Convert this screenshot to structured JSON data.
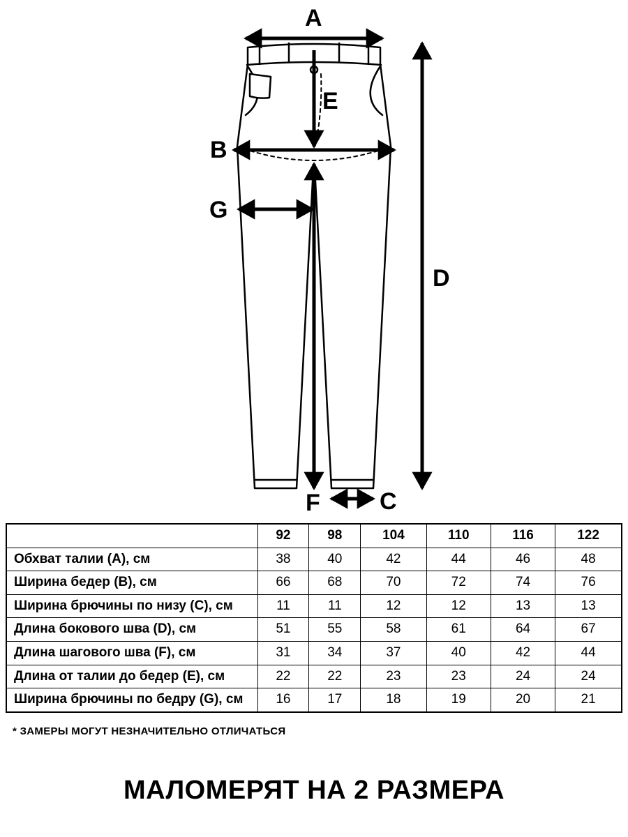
{
  "diagram": {
    "labels": {
      "A": "A",
      "B": "B",
      "C": "C",
      "D": "D",
      "E": "E",
      "F": "F",
      "G": "G"
    },
    "stroke_color": "#000000",
    "fill_color": "#ffffff",
    "line_width_outline": 2.5,
    "line_width_detail": 2,
    "arrow_line_width": 5,
    "label_fontsize": 34,
    "label_fontweight": 900
  },
  "table": {
    "header_blank": "",
    "columns": [
      "92",
      "98",
      "104",
      "110",
      "116",
      "122"
    ],
    "rows": [
      {
        "label": "Обхват талии (A), см",
        "values": [
          "38",
          "40",
          "42",
          "44",
          "46",
          "48"
        ]
      },
      {
        "label": "Ширина бедер (B), см",
        "values": [
          "66",
          "68",
          "70",
          "72",
          "74",
          "76"
        ]
      },
      {
        "label": "Ширина брючины по низу (C), см",
        "values": [
          "11",
          "11",
          "12",
          "12",
          "13",
          "13"
        ]
      },
      {
        "label": "Длина бокового шва (D), см",
        "values": [
          "51",
          "55",
          "58",
          "61",
          "64",
          "67"
        ]
      },
      {
        "label": "Длина шагового шва (F), см",
        "values": [
          "31",
          "34",
          "37",
          "40",
          "42",
          "44"
        ]
      },
      {
        "label": "Длина от талии до бедер (E), см",
        "values": [
          "22",
          "22",
          "23",
          "23",
          "24",
          "24"
        ]
      },
      {
        "label": "Ширина брючины по бедру (G), см",
        "values": [
          "16",
          "17",
          "18",
          "19",
          "20",
          "21"
        ]
      }
    ],
    "border_color": "#000000",
    "cell_fontsize": 19,
    "header_fontweight": 900,
    "rowlabel_fontweight": 700
  },
  "footnote": "* ЗАМЕРЫ МОГУТ НЕЗНАЧИТЕЛЬНО ОТЛИЧАТЬСЯ",
  "headline": "МАЛОМЕРЯТ НА 2 РАЗМЕРА"
}
